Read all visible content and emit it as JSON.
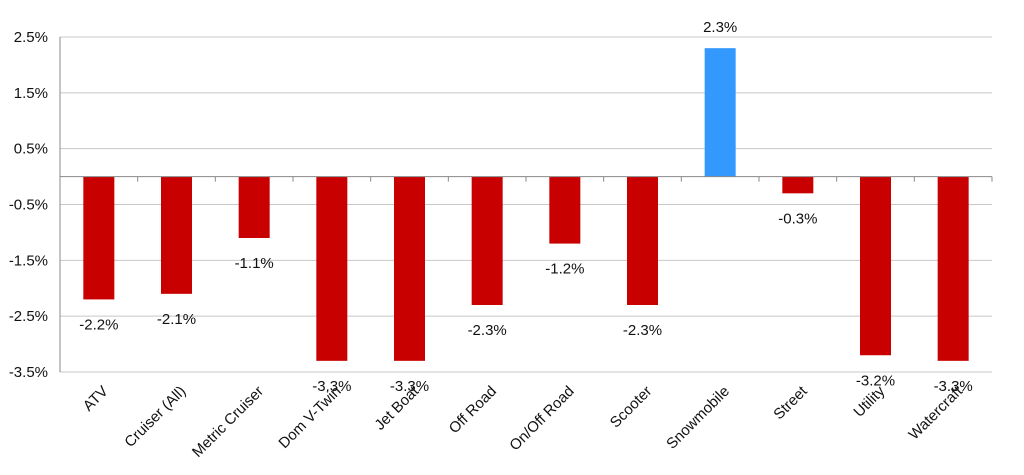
{
  "chart_data": {
    "type": "bar",
    "categories": [
      "ATV",
      "Cruiser (All)",
      "Metric Cruiser",
      "Dom V-Twin",
      "Jet Boat",
      "Off Road",
      "On/Off Road",
      "Scooter",
      "Snowmobile",
      "Street",
      "Utility",
      "Watercraft"
    ],
    "values": [
      -2.2,
      -2.1,
      -1.1,
      -3.3,
      -3.3,
      -2.3,
      -1.2,
      -2.3,
      2.3,
      -0.3,
      -3.2,
      -3.3
    ],
    "value_labels": [
      "-2.2%",
      "-2.1%",
      "-1.1%",
      "-3.3%",
      "-3.3%",
      "-2.3%",
      "-1.2%",
      "-2.3%",
      "2.3%",
      "-0.3%",
      "-3.2%",
      "-3.3%"
    ],
    "yticks": [
      2.5,
      1.5,
      0.5,
      -0.5,
      -1.5,
      -2.5,
      -3.5
    ],
    "ytick_labels": [
      "2.5%",
      "1.5%",
      "0.5%",
      "-0.5%",
      "-1.5%",
      "-2.5%",
      "-3.5%"
    ],
    "ylim": [
      -3.5,
      2.5
    ],
    "title": "",
    "xlabel": "",
    "ylabel": "",
    "grid": true,
    "legend": "none",
    "colors": {
      "negative": "#c80000",
      "positive": "#3399ff",
      "grid": "#c8c8c8",
      "axis": "#888888"
    }
  }
}
